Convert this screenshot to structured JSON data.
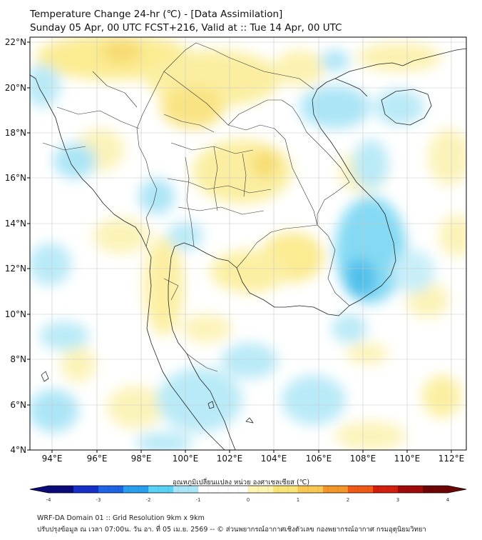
{
  "header": {
    "title": "Temperature Change 24-hr (℃) - [Data Assimilation]",
    "subtitle": "Sunday 05 Apr, 00 UTC FCST+216, Valid at :: Tue 14 Apr, 00 UTC"
  },
  "map": {
    "lat_ticks": [
      "22°N",
      "20°N",
      "18°N",
      "16°N",
      "14°N",
      "12°N",
      "10°N",
      "8°N",
      "6°N",
      "4°N"
    ],
    "lon_ticks": [
      "94°E",
      "96°E",
      "98°E",
      "100°E",
      "102°E",
      "104°E",
      "106°E",
      "108°E",
      "110°E",
      "112°E"
    ],
    "lat_range": [
      4,
      22.2
    ],
    "lon_range": [
      93,
      112.7
    ]
  },
  "colorbar": {
    "label": "อุณหภูมิเปลี่ยนแปลง หน่วย องศาเซลเซียส (℃)",
    "ticks": [
      "-4",
      "-3",
      "-2",
      "-1",
      "0",
      "1",
      "2",
      "3",
      "4"
    ],
    "min": -4,
    "max": 4,
    "colors": [
      "#0a0a78",
      "#1430c8",
      "#1e64e6",
      "#28a0f0",
      "#5ad2f5",
      "#aae6fa",
      "#ffffff",
      "#ffffff",
      "#fff5b4",
      "#fae678",
      "#fac850",
      "#f59628",
      "#f05a14",
      "#d21e0a",
      "#a00a0a",
      "#6e0505"
    ]
  },
  "footer": {
    "line1": "WRF-DA Domain 01 :: Grid Resolution 9km x 9km",
    "line2": "ปรับปรุงข้อมูล ณ เวลา 07:00น. วัน อา. ที่ 05 เม.ย. 2569 -- © ส่วนพยากรณ์อากาศเชิงตัวเลข กองพยากรณ์อากาศ กรมอุตุนิยมวิทยา"
  }
}
